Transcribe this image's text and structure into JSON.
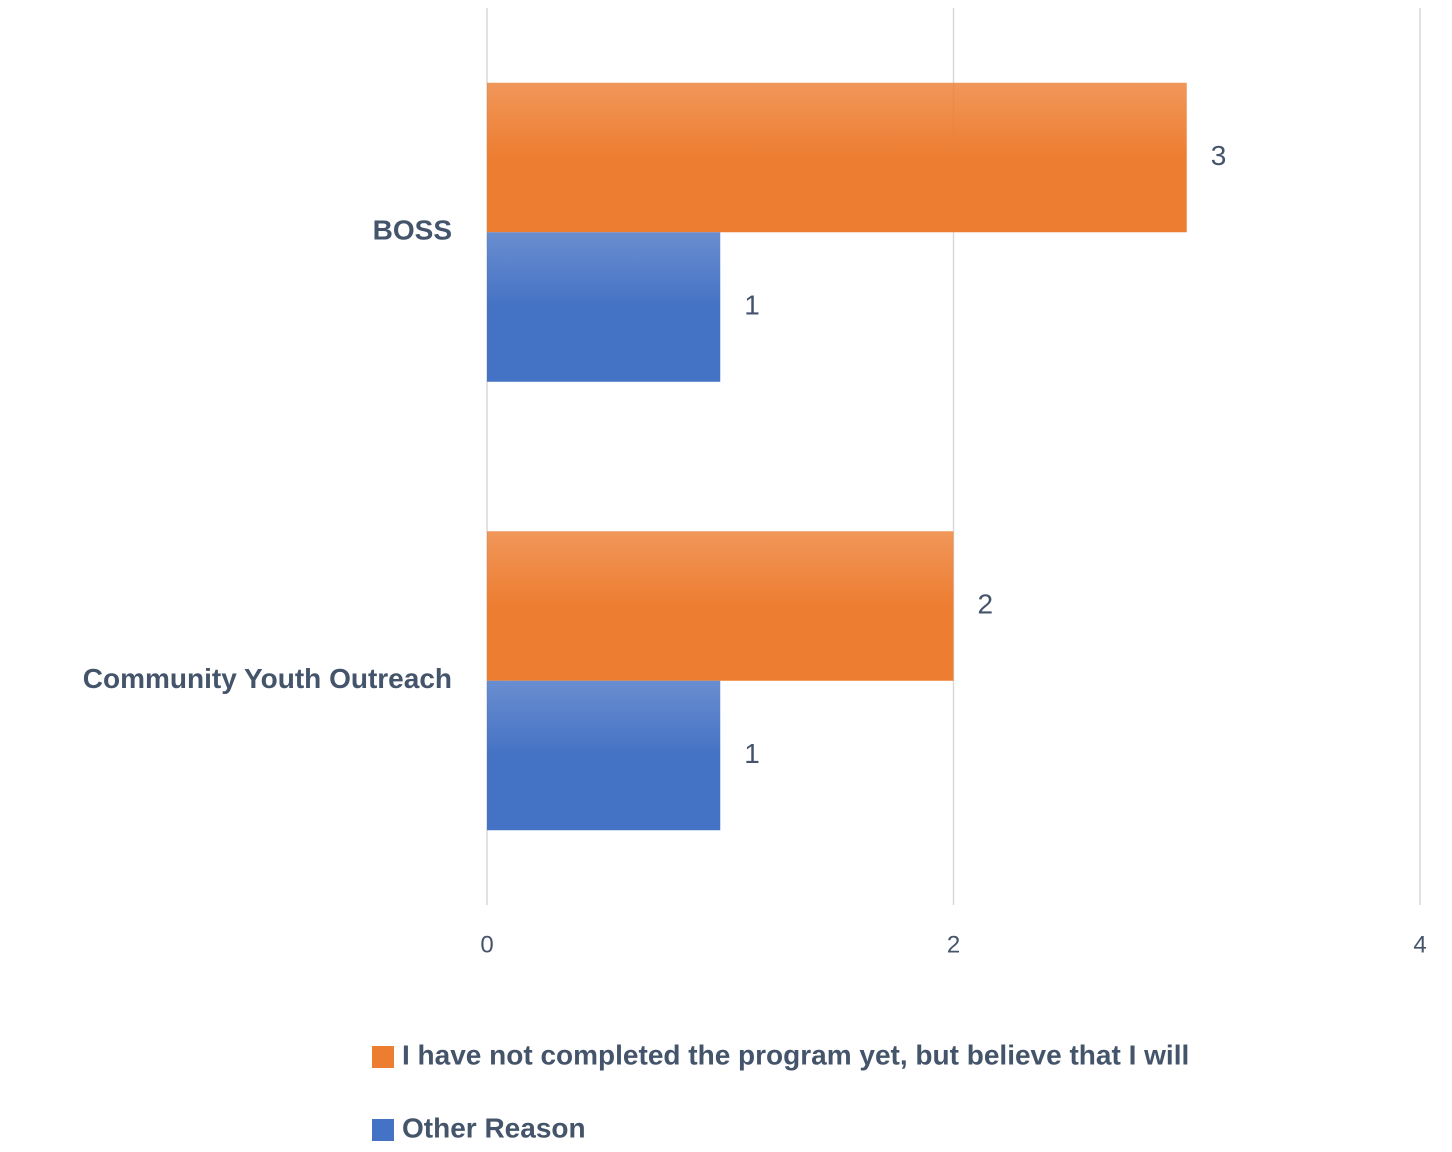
{
  "chart_data": {
    "type": "barh",
    "categories": [
      "BOSS",
      "Community Youth Outreach"
    ],
    "series": [
      {
        "name": "I have not completed the program yet, but believe that I will",
        "color": "#ed7d31",
        "values": [
          3,
          2
        ]
      },
      {
        "name": "Other Reason",
        "color": "#4472c4",
        "values": [
          1,
          1
        ]
      }
    ],
    "xlim": [
      0,
      4
    ],
    "xticks": [
      0,
      2,
      4
    ],
    "grid": true
  }
}
